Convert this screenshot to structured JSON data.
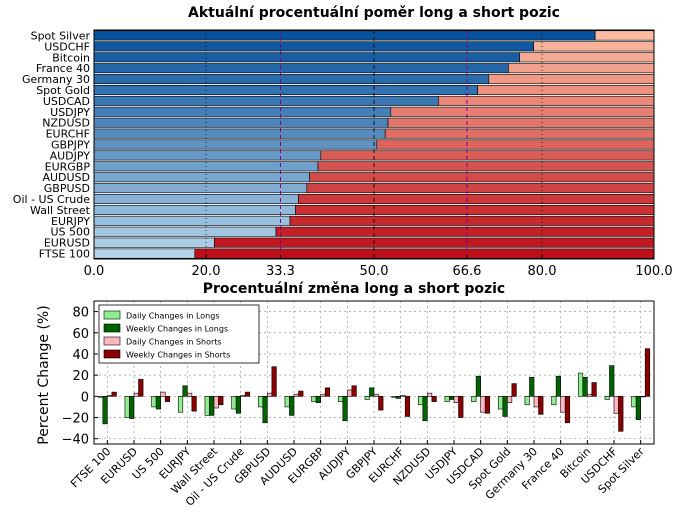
{
  "chart_data": [
    {
      "type": "bar",
      "orientation": "horizontal",
      "stacked": true,
      "title": "Aktuální procentuální poměr long a short pozic",
      "categories": [
        "Spot Silver",
        "USDCHF",
        "Bitcoin",
        "France 40",
        "Germany 30",
        "Spot Gold",
        "USDCAD",
        "USDJPY",
        "NZDUSD",
        "EURCHF",
        "GBPJPY",
        "AUDJPY",
        "EURGBP",
        "AUDUSD",
        "GBPUSD",
        "Oil - US Crude",
        "Wall Street",
        "EURJPY",
        "US 500",
        "EURUSD",
        "FTSE 100"
      ],
      "series": [
        {
          "values": [
            89.5,
            78.5,
            76.0,
            74.0,
            70.5,
            68.5,
            61.5,
            53.0,
            52.5,
            52.0,
            50.5,
            40.5,
            40.0,
            38.5,
            38.0,
            36.5,
            36.0,
            35.0,
            32.5,
            21.5,
            18.0
          ]
        },
        {
          "values": [
            10.5,
            21.5,
            24.0,
            26.0,
            29.5,
            31.5,
            38.5,
            47.0,
            47.5,
            48.0,
            49.5,
            59.5,
            60.0,
            61.5,
            62.0,
            63.5,
            64.0,
            65.0,
            67.5,
            78.5,
            82.0
          ]
        }
      ],
      "xlim": [
        0,
        100
      ],
      "xticks": [
        "0.0",
        "20.0",
        "33.3",
        "50.0",
        "66.6",
        "80.0",
        "100.0"
      ],
      "reference_lines": [
        33.3,
        50.0,
        66.6
      ],
      "grid": true
    },
    {
      "type": "bar",
      "title": "Procentuální změna long a short pozic",
      "ylabel": "Percent Change (%)",
      "ylim": [
        -45,
        90
      ],
      "yticks": [
        "−40",
        "−20",
        "0",
        "20",
        "40",
        "60",
        "80"
      ],
      "categories": [
        "FTSE 100",
        "EURUSD",
        "US 500",
        "EURJPY",
        "Wall Street",
        "Oil - US Crude",
        "GBPUSD",
        "AUDUSD",
        "EURGBP",
        "AUDJPY",
        "GBPJPY",
        "EURCHF",
        "NZDUSD",
        "USDJPY",
        "USDCAD",
        "Spot Gold",
        "Germany 30",
        "France 40",
        "Bitcoin",
        "USDCHF",
        "Spot Silver"
      ],
      "series": [
        {
          "name": "Daily Changes in Longs",
          "values": [
            -1,
            -20,
            -10,
            -15,
            -18,
            -12,
            -10,
            -10,
            -5,
            -5,
            -3,
            -1,
            -8,
            -5,
            -5,
            -12,
            -8,
            -8,
            22,
            -3,
            -10
          ]
        },
        {
          "name": "Weekly Changes in Longs",
          "values": [
            -26,
            -21,
            -12,
            10,
            -18,
            -16,
            -25,
            -18,
            -6,
            -23,
            8,
            -2,
            -23,
            -3,
            19,
            -19,
            18,
            19,
            18,
            29,
            -22
          ]
        },
        {
          "name": "Daily Changes in Shorts",
          "values": [
            1,
            3,
            4,
            3,
            -11,
            1,
            3,
            2,
            2,
            6,
            2,
            1,
            3,
            -6,
            -15,
            -6,
            -10,
            -15,
            2,
            -16,
            0
          ]
        },
        {
          "name": "Weekly Changes in Shorts",
          "values": [
            4,
            16,
            -5,
            -14,
            -8,
            4,
            28,
            5,
            8,
            10,
            -13,
            -19,
            -5,
            -20,
            -16,
            12,
            -17,
            -25,
            13,
            -33,
            45
          ]
        }
      ],
      "legend": "top-left",
      "grid": true
    }
  ],
  "colors": {
    "longs_daily": "#90ee90",
    "longs_weekly": "#006400",
    "shorts_daily": "#ffb6c1",
    "shorts_weekly": "#8b0000",
    "ref_purple": "#800080",
    "purple_tick_text": "#800080"
  }
}
